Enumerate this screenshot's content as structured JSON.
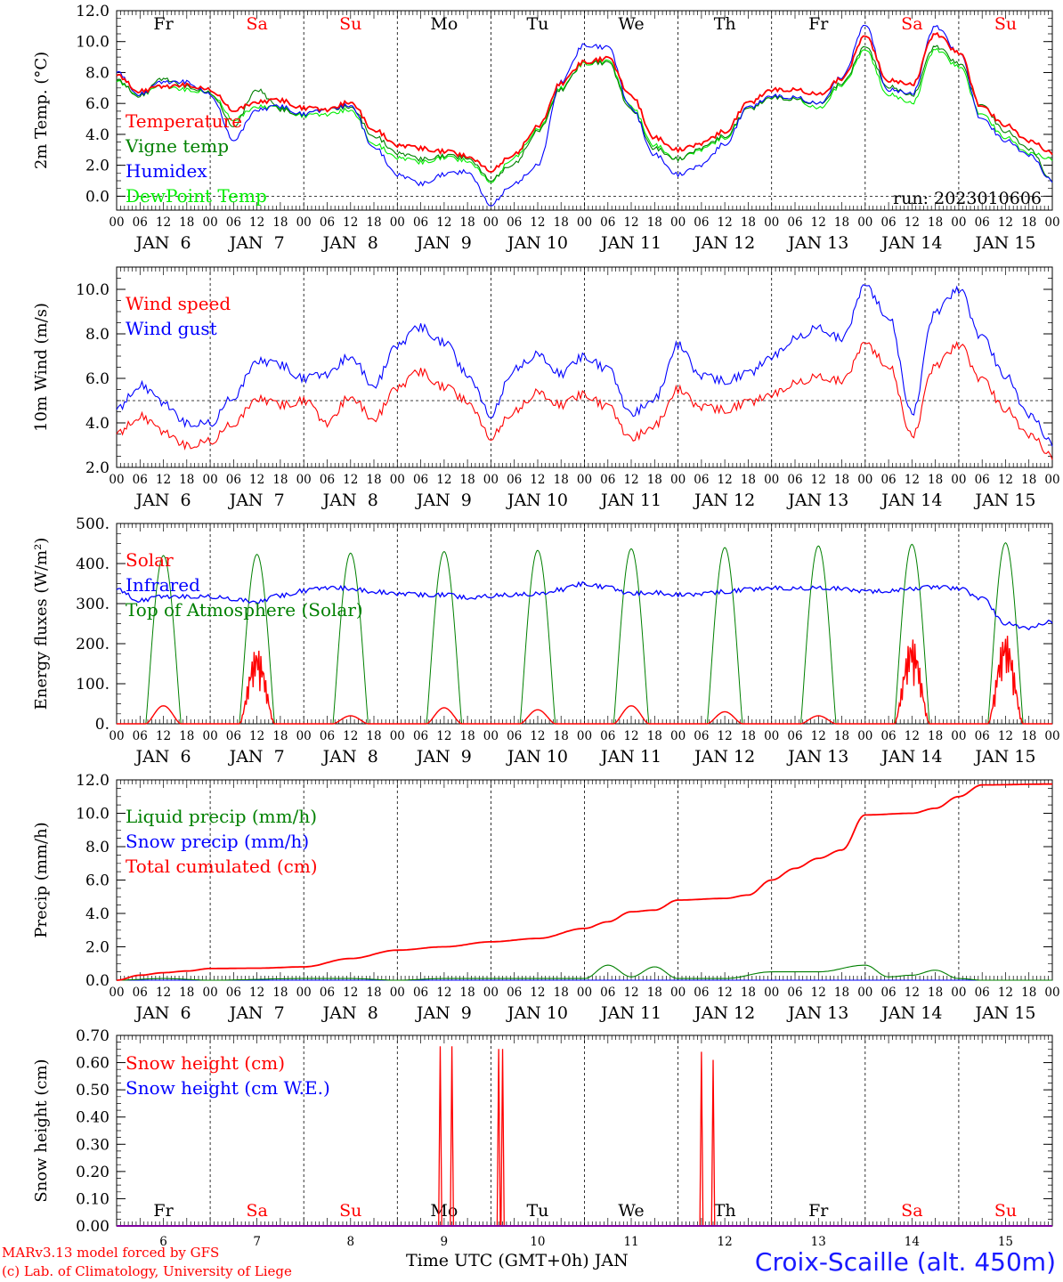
{
  "days": {
    "abbr": [
      "Fr",
      "Sa",
      "Su",
      "Mo",
      "Tu",
      "We",
      "Th",
      "Fr",
      "Sa",
      "Su"
    ],
    "colors": [
      "#000000",
      "#ff0000",
      "#ff0000",
      "#000000",
      "#000000",
      "#000000",
      "#000000",
      "#000000",
      "#ff0000",
      "#ff0000"
    ],
    "dates": [
      "JAN  6",
      "JAN  7",
      "JAN  8",
      "JAN  9",
      "JAN 10",
      "JAN 11",
      "JAN 12",
      "JAN 13",
      "JAN 14",
      "JAN 15"
    ],
    "numbers": [
      "6",
      "7",
      "8",
      "9",
      "10",
      "11",
      "12",
      "13",
      "14",
      "15"
    ],
    "hour_ticks": [
      "00",
      "06",
      "12",
      "18"
    ],
    "final_tick": "00"
  },
  "footer": {
    "credit_line1": "MARv3.13 model forced by GFS",
    "credit_line2": "(c) Lab. of Climatology, University of Liege",
    "x_caption": "Time UTC (GMT+0h) JAN",
    "station": "Croix-Scaille (alt. 450m)"
  },
  "chart_data": [
    {
      "type": "line",
      "ylabel": "2m Temp. (°C)",
      "ylim": [
        -0.9,
        12.0
      ],
      "yticks": [
        "12.0",
        "10.0",
        "8.0",
        "6.0",
        "4.0",
        "2.0",
        "0.0"
      ],
      "annotation": "run: 2023010606",
      "reference_line": 0.0,
      "x_unit": "hours since JAN 6 00 UTC",
      "series": [
        {
          "name": "Temperature",
          "color": "#ff0000",
          "x": [
            0,
            6,
            12,
            18,
            24,
            30,
            36,
            42,
            48,
            54,
            60,
            66,
            72,
            78,
            84,
            90,
            96,
            102,
            108,
            114,
            120,
            126,
            132,
            138,
            144,
            150,
            156,
            162,
            168,
            174,
            180,
            186,
            192,
            198,
            204,
            210,
            216,
            222,
            228,
            234,
            240
          ],
          "y": [
            7.8,
            6.8,
            7.1,
            7.2,
            6.9,
            5.6,
            6.1,
            6.2,
            5.7,
            5.6,
            6.1,
            4.3,
            3.3,
            3.1,
            2.9,
            2.6,
            1.7,
            2.7,
            4.5,
            7.3,
            8.7,
            8.9,
            6.5,
            3.8,
            3.0,
            3.4,
            4.2,
            6.0,
            6.9,
            6.9,
            6.6,
            7.6,
            10.3,
            7.5,
            7.2,
            10.5,
            9.3,
            5.7,
            4.6,
            3.6,
            2.8
          ]
        },
        {
          "name": "Vigne temp",
          "color": "#008000",
          "x": [
            0,
            6,
            12,
            18,
            24,
            30,
            36,
            42,
            48,
            54,
            60,
            66,
            72,
            78,
            84,
            90,
            96,
            102,
            108,
            114,
            120,
            126,
            132,
            138,
            144,
            150,
            156,
            162,
            168,
            174,
            180,
            186,
            192,
            198,
            204,
            210,
            216,
            222,
            228,
            234,
            240
          ],
          "y": [
            7.5,
            6.5,
            7.6,
            7.1,
            6.7,
            4.6,
            6.9,
            5.6,
            5.3,
            5.6,
            5.8,
            3.9,
            2.8,
            2.4,
            2.6,
            2.5,
            1.1,
            2.1,
            4.2,
            6.9,
            8.7,
            8.6,
            5.6,
            3.1,
            2.4,
            3.1,
            3.9,
            5.6,
            6.4,
            6.3,
            6.0,
            7.3,
            9.6,
            7.1,
            6.5,
            9.7,
            8.6,
            5.8,
            4.2,
            3.1,
            1.0
          ]
        },
        {
          "name": "Humidex",
          "color": "#0000ff",
          "x": [
            0,
            6,
            12,
            18,
            24,
            30,
            36,
            42,
            48,
            54,
            60,
            66,
            72,
            78,
            84,
            90,
            96,
            102,
            108,
            114,
            120,
            126,
            132,
            138,
            144,
            150,
            156,
            162,
            168,
            174,
            180,
            186,
            192,
            198,
            204,
            210,
            216,
            222,
            228,
            234,
            240
          ],
          "y": [
            8.0,
            6.6,
            7.4,
            7.4,
            6.6,
            3.7,
            5.6,
            5.8,
            5.3,
            5.6,
            5.9,
            3.2,
            1.4,
            0.8,
            1.4,
            1.6,
            -0.5,
            0.8,
            2.0,
            7.4,
            9.8,
            9.6,
            5.7,
            2.7,
            1.4,
            2.0,
            3.4,
            5.7,
            6.5,
            6.4,
            6.0,
            7.7,
            11.0,
            6.9,
            6.6,
            11.0,
            9.3,
            4.9,
            3.6,
            2.7,
            1.0
          ]
        },
        {
          "name": "DewPoint Temp",
          "color": "#00ee00",
          "x": [
            0,
            6,
            12,
            18,
            24,
            30,
            36,
            42,
            48,
            54,
            60,
            66,
            72,
            78,
            84,
            90,
            96,
            102,
            108,
            114,
            120,
            126,
            132,
            138,
            144,
            150,
            156,
            162,
            168,
            174,
            180,
            186,
            192,
            198,
            204,
            210,
            216,
            222,
            228,
            234,
            240
          ],
          "y": [
            7.4,
            6.6,
            7.1,
            6.9,
            6.7,
            5.0,
            5.8,
            5.7,
            5.2,
            5.3,
            5.6,
            3.4,
            2.5,
            2.2,
            2.5,
            2.3,
            1.0,
            2.5,
            4.3,
            7.0,
            8.6,
            8.7,
            5.8,
            3.3,
            2.4,
            3.0,
            3.8,
            5.6,
            6.4,
            6.3,
            5.7,
            7.2,
            9.4,
            6.6,
            6.0,
            9.5,
            8.4,
            5.2,
            3.8,
            2.8,
            2.4
          ]
        }
      ]
    },
    {
      "type": "line",
      "ylabel": "10m Wind (m/s)",
      "ylim": [
        2.0,
        11.0
      ],
      "yticks": [
        "10.0",
        "8.0",
        "6.0",
        "4.0",
        "2.0"
      ],
      "reference_line": 5.0,
      "x_unit": "hours since JAN 6 00 UTC",
      "series": [
        {
          "name": "Wind speed",
          "color": "#ff0000",
          "x": [
            0,
            6,
            12,
            18,
            24,
            30,
            36,
            42,
            48,
            54,
            60,
            66,
            72,
            78,
            84,
            90,
            96,
            102,
            108,
            114,
            120,
            126,
            132,
            138,
            144,
            150,
            156,
            162,
            168,
            174,
            180,
            186,
            192,
            198,
            204,
            210,
            216,
            222,
            228,
            234,
            240
          ],
          "y": [
            3.5,
            4.3,
            3.6,
            3.0,
            3.2,
            4.0,
            5.1,
            4.8,
            5.0,
            4.0,
            5.2,
            4.2,
            5.6,
            6.3,
            5.6,
            5.0,
            3.4,
            4.5,
            5.4,
            4.8,
            5.3,
            4.7,
            3.3,
            3.9,
            5.5,
            4.7,
            4.6,
            4.9,
            5.3,
            5.8,
            6.1,
            5.9,
            7.5,
            6.6,
            3.4,
            6.6,
            7.5,
            5.9,
            4.6,
            3.5,
            2.5
          ]
        },
        {
          "name": "Wind gust",
          "color": "#0000ff",
          "x": [
            0,
            6,
            12,
            18,
            24,
            30,
            36,
            42,
            48,
            54,
            60,
            66,
            72,
            78,
            84,
            90,
            96,
            102,
            108,
            114,
            120,
            126,
            132,
            138,
            144,
            150,
            156,
            162,
            168,
            174,
            180,
            186,
            192,
            198,
            204,
            210,
            216,
            222,
            228,
            234,
            240
          ],
          "y": [
            4.6,
            5.7,
            4.9,
            4.0,
            4.0,
            5.2,
            6.8,
            6.6,
            6.0,
            6.2,
            7.0,
            5.7,
            7.5,
            8.3,
            7.6,
            6.2,
            4.4,
            6.4,
            7.1,
            6.2,
            7.0,
            6.4,
            4.4,
            5.1,
            7.5,
            6.1,
            5.9,
            6.2,
            7.0,
            7.8,
            8.3,
            7.8,
            10.1,
            8.8,
            4.4,
            9.0,
            10.0,
            7.8,
            6.1,
            4.4,
            3.1
          ]
        }
      ]
    },
    {
      "type": "line",
      "ylabel": "Energy fluxes (W/m²)",
      "ylim": [
        0,
        500
      ],
      "yticks": [
        "500.",
        "400.",
        "300.",
        "200.",
        "100.",
        "0."
      ],
      "x_unit": "hours since JAN 6 00 UTC",
      "solar_peaks_by_day": [
        45,
        190,
        20,
        40,
        35,
        45,
        30,
        20,
        215,
        225
      ],
      "toa_peaks_by_day": [
        420,
        423,
        426,
        430,
        433,
        437,
        440,
        444,
        448,
        452
      ],
      "series": [
        {
          "name": "Solar",
          "color": "#ff0000"
        },
        {
          "name": "Infrared",
          "color": "#0000ff",
          "x": [
            0,
            6,
            12,
            18,
            24,
            30,
            36,
            42,
            48,
            54,
            60,
            66,
            72,
            78,
            84,
            90,
            96,
            102,
            108,
            114,
            120,
            126,
            132,
            138,
            144,
            150,
            156,
            162,
            168,
            174,
            180,
            186,
            192,
            198,
            204,
            210,
            216,
            222,
            228,
            234,
            240
          ],
          "y": [
            335,
            308,
            318,
            318,
            318,
            312,
            305,
            320,
            332,
            340,
            338,
            330,
            325,
            322,
            322,
            315,
            320,
            322,
            325,
            335,
            350,
            340,
            325,
            328,
            322,
            324,
            330,
            335,
            340,
            338,
            340,
            338,
            330,
            332,
            336,
            342,
            338,
            312,
            250,
            240,
            255
          ]
        },
        {
          "name": "Top of Atmosphere (Solar)",
          "color": "#008000"
        }
      ]
    },
    {
      "type": "line",
      "ylabel": "Precip (mm/h)",
      "ylim": [
        0,
        12.0
      ],
      "yticks": [
        "12.0",
        "10.0",
        "8.0",
        "6.0",
        "4.0",
        "2.0",
        "0.0"
      ],
      "x_unit": "hours since JAN 6 00 UTC",
      "series": [
        {
          "name": "Liquid precip (mm/h)",
          "color": "#008000",
          "x": [
            0,
            12,
            24,
            48,
            60,
            72,
            84,
            96,
            108,
            120,
            126,
            132,
            138,
            144,
            156,
            168,
            180,
            192,
            198,
            204,
            210,
            216,
            222,
            240
          ],
          "y": [
            0,
            0.1,
            0,
            0.1,
            0.1,
            0,
            0.1,
            0.1,
            0.1,
            0.1,
            0.9,
            0.2,
            0.8,
            0.1,
            0.1,
            0.5,
            0.5,
            0.9,
            0.2,
            0.3,
            0.6,
            0.1,
            0,
            0
          ]
        },
        {
          "name": "Snow precip (mm/h)",
          "color": "#0000ff",
          "x": [
            0,
            240
          ],
          "y": [
            0,
            0
          ]
        },
        {
          "name": "Total cumulated (cm)",
          "color": "#ff0000",
          "x": [
            0,
            6,
            12,
            18,
            24,
            36,
            48,
            60,
            72,
            84,
            96,
            108,
            120,
            126,
            132,
            138,
            144,
            156,
            162,
            168,
            174,
            180,
            186,
            192,
            204,
            210,
            216,
            222,
            240
          ],
          "y": [
            0,
            0.3,
            0.45,
            0.55,
            0.7,
            0.72,
            0.8,
            1.3,
            1.8,
            2.0,
            2.3,
            2.5,
            3.1,
            3.5,
            4.1,
            4.2,
            4.8,
            4.9,
            5.1,
            6.0,
            6.7,
            7.3,
            7.8,
            9.9,
            10.0,
            10.3,
            11.0,
            11.7,
            11.75
          ]
        }
      ]
    },
    {
      "type": "line",
      "ylabel": "Snow height (cm)",
      "ylim": [
        0,
        0.7
      ],
      "yticks": [
        "0.70",
        "0.60",
        "0.50",
        "0.40",
        "0.30",
        "0.20",
        "0.10",
        "0.00"
      ],
      "x_unit": "hours since JAN 6 00 UTC",
      "series": [
        {
          "name": "Snow height (cm)",
          "color": "#ff0000",
          "spikes_x": [
            83,
            86,
            98,
            99,
            150,
            153
          ],
          "spikes_y": [
            0.66,
            0.66,
            0.65,
            0.65,
            0.64,
            0.61
          ]
        },
        {
          "name": "Snow height (cm W.E.)",
          "color": "#0000ff"
        }
      ]
    }
  ]
}
